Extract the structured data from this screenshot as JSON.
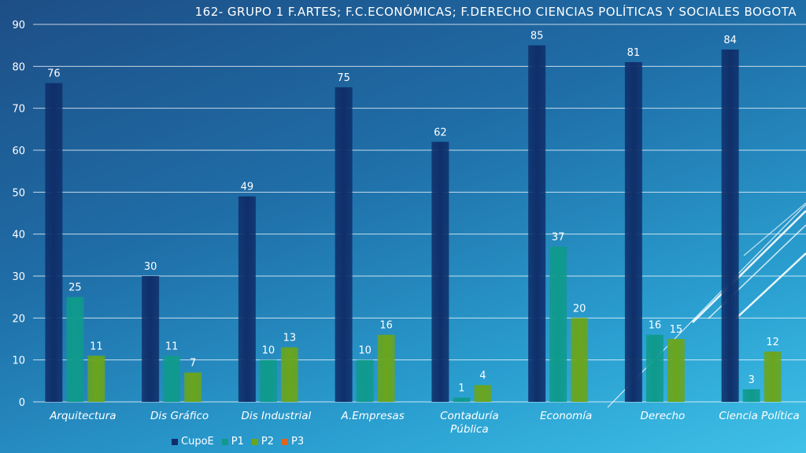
{
  "chart_data": {
    "type": "bar",
    "title": "162-  GRUPO 1  F.ARTES;  F.C.ECONÓMICAS;  F.DERECHO CIENCIAS POLÍTICAS Y SOCIALES  BOGOTA",
    "categories": [
      "Arquitectura",
      "Dis Gráfico",
      "Dis Industrial",
      "A.Empresas",
      "Contaduría Pública",
      "Economía",
      "Derecho",
      "Ciencia Política"
    ],
    "category_lines": [
      [
        "Arquitectura"
      ],
      [
        "Dis Gráfico"
      ],
      [
        "Dis Industrial"
      ],
      [
        "A.Empresas"
      ],
      [
        "Contaduría",
        "Pública"
      ],
      [
        "Economía"
      ],
      [
        "Derecho"
      ],
      [
        "Ciencia Política"
      ]
    ],
    "series": [
      {
        "name": "CupoE",
        "color": "#0f2f6a",
        "values": [
          76,
          30,
          49,
          75,
          62,
          85,
          81,
          84
        ]
      },
      {
        "name": "P1",
        "color": "#0f9a8c",
        "values": [
          25,
          11,
          10,
          10,
          1,
          37,
          16,
          3
        ]
      },
      {
        "name": "P2",
        "color": "#6aa51c",
        "values": [
          11,
          7,
          13,
          16,
          4,
          20,
          15,
          12
        ]
      },
      {
        "name": "P3",
        "color": "#e2631e",
        "values": [
          null,
          null,
          null,
          null,
          null,
          null,
          null,
          null
        ]
      }
    ],
    "ylim": [
      0,
      90
    ],
    "yticks": [
      0,
      10,
      20,
      30,
      40,
      50,
      60,
      70,
      80,
      90
    ],
    "grid": true,
    "legend_position": "bottom",
    "xlabel": "",
    "ylabel": ""
  }
}
